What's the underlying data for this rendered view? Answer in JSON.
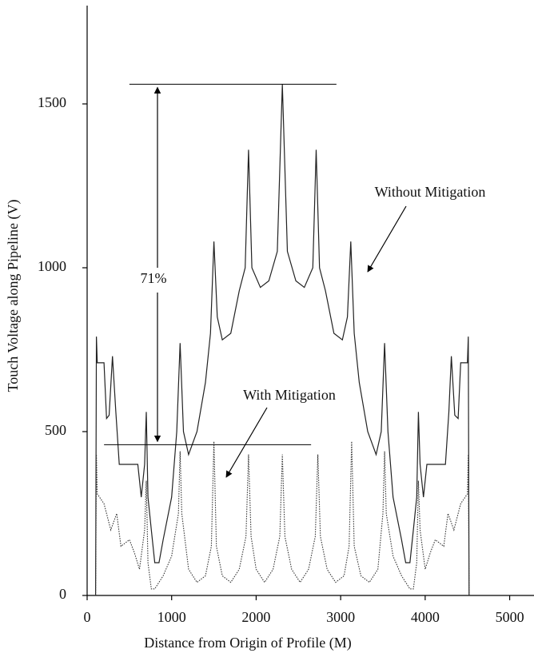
{
  "chart_data": {
    "type": "line",
    "x_label": "Distance from Origin of Profile (M)",
    "y_label": "Touch Voltage along Pipeline (V)",
    "xlim": [
      0,
      5250
    ],
    "ylim": [
      0,
      1800
    ],
    "xticks": [
      0,
      1000,
      2000,
      3000,
      4000,
      5000
    ],
    "yticks": [
      0,
      500,
      1000,
      1500
    ],
    "series": [
      {
        "name": "Without Mitigation",
        "color": "#222222",
        "dash": "solid",
        "x": [
          100,
          110,
          120,
          200,
          230,
          260,
          300,
          340,
          380,
          600,
          640,
          680,
          700,
          720,
          760,
          800,
          850,
          900,
          1000,
          1060,
          1100,
          1140,
          1200,
          1300,
          1400,
          1460,
          1500,
          1540,
          1600,
          1700,
          1800,
          1870,
          1910,
          1950,
          2050,
          2150,
          2250,
          2310,
          2370,
          2470,
          2570,
          2670,
          2710,
          2750,
          2820,
          2920,
          3020,
          3080,
          3120,
          3160,
          3220,
          3320,
          3420,
          3480,
          3520,
          3560,
          3620,
          3720,
          3770,
          3820,
          3860,
          3900,
          3920,
          3940,
          3980,
          4020,
          4240,
          4280,
          4310,
          4350,
          4390,
          4420,
          4500,
          4510,
          4520
        ],
        "values": [
          0,
          790,
          710,
          710,
          540,
          550,
          730,
          560,
          400,
          400,
          300,
          400,
          560,
          300,
          200,
          100,
          100,
          170,
          300,
          500,
          770,
          500,
          430,
          500,
          650,
          800,
          1080,
          850,
          780,
          800,
          930,
          1000,
          1360,
          1000,
          940,
          960,
          1050,
          1560,
          1050,
          960,
          940,
          1000,
          1360,
          1000,
          930,
          800,
          780,
          850,
          1080,
          800,
          650,
          500,
          430,
          500,
          770,
          500,
          300,
          170,
          100,
          100,
          200,
          300,
          560,
          400,
          300,
          400,
          400,
          560,
          730,
          550,
          540,
          710,
          710,
          790,
          0
        ]
      },
      {
        "name": "With Mitigation",
        "color": "#333333",
        "dash": "dotted",
        "x": [
          100,
          110,
          120,
          200,
          280,
          350,
          400,
          500,
          560,
          620,
          680,
          700,
          720,
          760,
          800,
          900,
          1000,
          1080,
          1100,
          1120,
          1200,
          1300,
          1400,
          1470,
          1500,
          1530,
          1600,
          1700,
          1800,
          1880,
          1910,
          1940,
          2000,
          2100,
          2200,
          2280,
          2310,
          2340,
          2420,
          2520,
          2620,
          2700,
          2730,
          2760,
          2840,
          2940,
          3040,
          3100,
          3130,
          3160,
          3240,
          3340,
          3440,
          3500,
          3520,
          3540,
          3620,
          3720,
          3820,
          3860,
          3900,
          3920,
          3940,
          4000,
          4060,
          4120,
          4220,
          4270,
          4340,
          4420,
          4500,
          4510,
          4520
        ],
        "values": [
          0,
          430,
          310,
          280,
          200,
          250,
          150,
          170,
          130,
          80,
          200,
          350,
          100,
          20,
          20,
          60,
          120,
          250,
          440,
          250,
          80,
          40,
          60,
          150,
          470,
          150,
          60,
          40,
          80,
          180,
          430,
          180,
          80,
          40,
          80,
          180,
          430,
          180,
          80,
          40,
          80,
          180,
          430,
          180,
          80,
          40,
          60,
          150,
          470,
          150,
          60,
          40,
          80,
          250,
          440,
          250,
          120,
          60,
          20,
          20,
          100,
          350,
          200,
          80,
          130,
          170,
          150,
          250,
          200,
          280,
          310,
          430,
          0
        ]
      }
    ],
    "reference_lines": [
      {
        "y": 1560,
        "x": [
          500,
          2950
        ]
      },
      {
        "y": 460,
        "x": [
          200,
          2650
        ]
      }
    ],
    "reduction_label": "71%"
  }
}
